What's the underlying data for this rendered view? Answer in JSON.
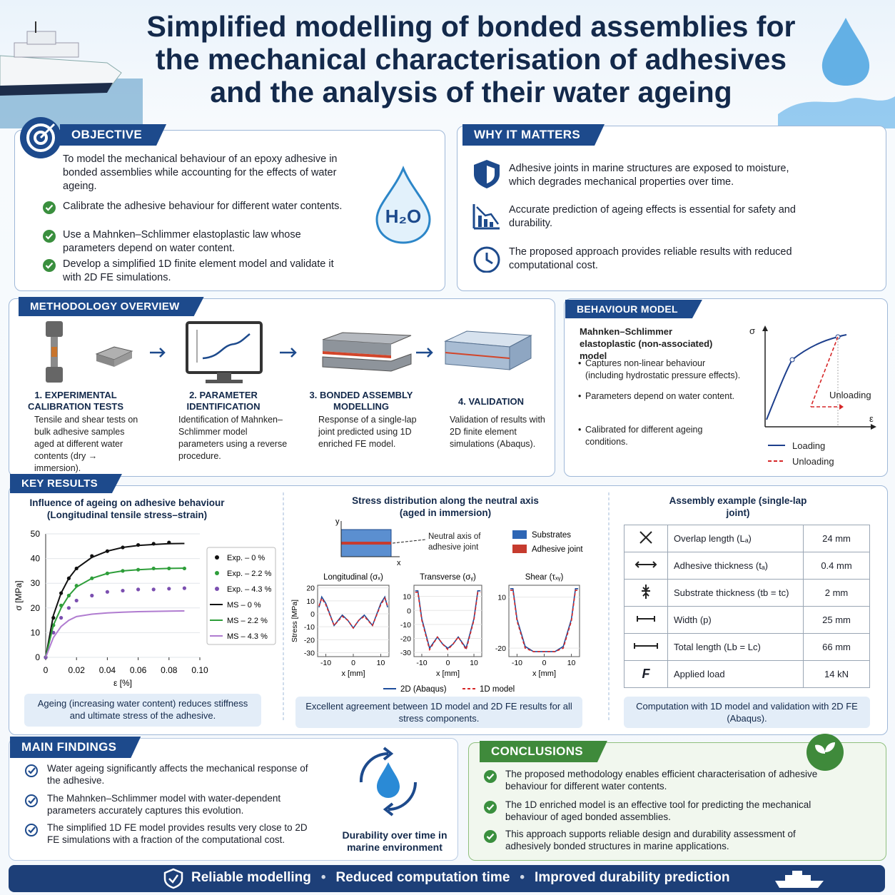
{
  "header": {
    "title": "Simplified modelling of bonded assemblies for the mechanical characterisation of adhesives and the analysis of their water ageing"
  },
  "objective": {
    "heading": "OBJECTIVE",
    "intro": "To model the mechanical behaviour of an epoxy adhesive in bonded assemblies while accounting for the effects of water ageing.",
    "items": [
      "Calibrate the adhesive behaviour for different water contents.",
      "Use a Mahnken–Schlimmer elastoplastic law whose parameters depend on water content.",
      "Develop a simplified 1D finite element model and validate it with 2D FE simulations."
    ],
    "icon_label": "H₂O"
  },
  "why": {
    "heading": "WHY IT MATTERS",
    "items": [
      "Adhesive joints in marine structures are exposed to moisture, which degrades mechanical properties over time.",
      "Accurate prediction of ageing effects is essential for safety and durability.",
      "The proposed approach provides reliable results with reduced computational cost."
    ]
  },
  "methodology": {
    "heading": "METHODOLOGY OVERVIEW",
    "steps": [
      {
        "title": "1. EXPERIMENTAL CALIBRATION TESTS",
        "text": "Tensile and shear tests on bulk adhesive samples aged at different water contents (dry → immersion)."
      },
      {
        "title": "2. PARAMETER IDENTIFICATION",
        "text": "Identification of Mahnken–Schlimmer model parameters using a reverse procedure."
      },
      {
        "title": "3. BONDED ASSEMBLY MODELLING",
        "text": "Response of a single-lap joint predicted using 1D enriched FE model."
      },
      {
        "title": "4. VALIDATION",
        "text": "Validation of results with 2D finite element simulations (Abaqus)."
      }
    ]
  },
  "behaviour": {
    "heading": "BEHAVIOUR MODEL",
    "title": "Mahnken–Schlimmer elastoplastic (non-associated) model",
    "items": [
      "Captures non-linear behaviour (including hydrostatic pressure effects).",
      "Parameters depend on water content.",
      "Calibrated for different ageing conditions."
    ],
    "chart": {
      "y_label": "σ",
      "x_label": "ε",
      "annotation": "Unloading",
      "legend": [
        "Loading",
        "Unloading"
      ]
    }
  },
  "key_results": {
    "heading": "KEY RESULTS",
    "tensile": {
      "title": "Influence of ageing on adhesive behaviour (Longitudinal tensile stress–strain)",
      "chart": {
        "type": "line",
        "y_label": "σ [MPa]",
        "x_label": "ε [%]",
        "xlim": [
          0,
          0.1
        ],
        "xticks": [
          0,
          0.02,
          0.04,
          0.06,
          0.08,
          {
            "value": 0.1,
            "label": "0.10"
          }
        ],
        "ylim": [
          0,
          50
        ],
        "yticks": [
          0,
          10,
          20,
          30,
          40,
          50
        ],
        "x": [
          0,
          0.005,
          0.01,
          0.015,
          0.02,
          0.03,
          0.04,
          0.05,
          0.06,
          0.07,
          0.08,
          0.09
        ],
        "series": [
          {
            "name": "Exp. – 0 %",
            "color": "#111111",
            "style": "markers",
            "values": [
              0,
              16,
              26,
              32,
              36,
              41,
              43,
              44.5,
              45.5,
              46,
              46.5,
              null
            ]
          },
          {
            "name": "Exp. – 2.2 %",
            "color": "#2e9e3a",
            "style": "markers",
            "values": [
              0,
              13,
              21,
              25,
              29,
              32,
              34,
              35,
              35.5,
              36,
              36,
              36
            ]
          },
          {
            "name": "Exp. – 4.3 %",
            "color": "#7b4fb0",
            "style": "markers",
            "values": [
              0,
              10,
              16,
              20,
              23,
              25,
              26.5,
              27,
              27.5,
              27.5,
              27.8,
              28
            ]
          },
          {
            "name": "MS – 0 %",
            "color": "#111111",
            "style": "line",
            "values": [
              0,
              17,
              26,
              32,
              36,
              40.5,
              43,
              44.5,
              45.3,
              45.7,
              46,
              46.1
            ]
          },
          {
            "name": "MS – 2.2 %",
            "color": "#2e9e3a",
            "style": "line",
            "values": [
              0,
              13,
              20,
              25,
              28.5,
              32,
              34,
              35,
              35.5,
              35.8,
              36,
              36.1
            ]
          },
          {
            "name": "MS – 4.3 %",
            "color": "#b07cd0",
            "style": "line",
            "values": [
              0,
              8,
              12.5,
              15,
              16.5,
              17.5,
              18,
              18.3,
              18.5,
              18.6,
              18.7,
              18.8
            ]
          }
        ]
      },
      "caption": "Ageing (increasing water content) reduces stiffness and ultimate stress of the adhesive."
    },
    "stress": {
      "title": "Stress distribution along the neutral axis (aged in immersion)",
      "inset": {
        "y": "y",
        "x": "x",
        "neutral_axis": "Neutral axis of adhesive joint",
        "legend": [
          "Substrates",
          "Adhesive joint"
        ]
      },
      "chart": {
        "type": "line",
        "y_label": "Stress [MPa]",
        "x_label": "x [mm]",
        "xlim": [
          -13,
          13
        ],
        "xticks": [
          -10,
          0,
          10
        ],
        "x": [
          -12.5,
          -11.5,
          -10,
          -7,
          -4,
          -2,
          0,
          2,
          4,
          7,
          10,
          11.5,
          12.5
        ],
        "legend": [
          {
            "name": "2D (Abaqus)",
            "color": "#1f4e9c"
          },
          {
            "name": "1D model",
            "color": "#d62728"
          }
        ],
        "subplots": [
          {
            "title": "Longitudinal (σₓ)",
            "ylim": [
              -33,
              22
            ],
            "yticks": [
              20,
              10,
              0,
              -10,
              -20,
              -30
            ],
            "series": [
              [
                5,
                13,
                8,
                -9,
                -1,
                -5,
                -11,
                -5,
                -1,
                -9,
                8,
                13,
                5
              ],
              [
                6,
                12,
                7,
                -9,
                -2,
                -5,
                -11,
                -5,
                -2,
                -9,
                7,
                12,
                6
              ]
            ]
          },
          {
            "title": "Transverse (σᵧ)",
            "ylim": [
              -33,
              18
            ],
            "yticks": [
              10,
              0,
              -10,
              -20,
              -30
            ],
            "series": [
              [
                14,
                14,
                -6,
                -27,
                -19,
                -24,
                -27,
                -24,
                -19,
                -27,
                -6,
                14,
                14
              ],
              [
                13,
                13,
                -7,
                -28,
                -19,
                -24,
                -28,
                -24,
                -19,
                -28,
                -7,
                13,
                13
              ]
            ]
          },
          {
            "title": "Shear (τₓᵧ)",
            "ylim": [
              -25,
              17
            ],
            "yticks": [
              10,
              -20
            ],
            "series": [
              [
                15,
                15,
                -3,
                -19,
                -22,
                -22,
                -22,
                -22,
                -22,
                -19,
                -3,
                15,
                15
              ],
              [
                14,
                14,
                -4,
                -20,
                -22,
                -22,
                -22,
                -22,
                -22,
                -20,
                -4,
                14,
                14
              ]
            ]
          }
        ]
      },
      "caption": "Excellent agreement between 1D model and 2D FE results for all stress components."
    },
    "assembly": {
      "title": "Assembly example (single-lap joint)",
      "rows": [
        [
          "Overlap length (Lₐ)",
          "24 mm"
        ],
        [
          "Adhesive thickness (tₐ)",
          "0.4 mm"
        ],
        [
          "Substrate thickness (tb = tc)",
          "2 mm"
        ],
        [
          "Width (p)",
          "25 mm"
        ],
        [
          "Total length (Lb = Lc)",
          "66 mm"
        ],
        [
          "Applied load",
          "14 kN"
        ]
      ],
      "load_symbol": "F",
      "caption": "Computation with 1D model and validation with 2D FE (Abaqus)."
    }
  },
  "findings": {
    "heading": "MAIN FINDINGS",
    "items": [
      "Water ageing significantly affects the mechanical response of the adhesive.",
      "The Mahnken–Schlimmer model with water-dependent parameters accurately captures this evolution.",
      "The simplified 1D FE model provides results very close to 2D FE simulations with a fraction of the computational cost."
    ],
    "durability": "Durability over time in marine environment"
  },
  "conclusions": {
    "heading": "CONCLUSIONS",
    "items": [
      "The proposed methodology enables efficient characterisation of adhesive behaviour for different water contents.",
      "The 1D enriched model is an effective tool for predicting the mechanical behaviour of aged bonded assemblies.",
      "This approach supports reliable design and durability assessment of adhesively bonded structures in marine applications."
    ]
  },
  "footer": {
    "items": [
      "Reliable modelling",
      "Reduced computation time",
      "Improved durability prediction"
    ]
  }
}
